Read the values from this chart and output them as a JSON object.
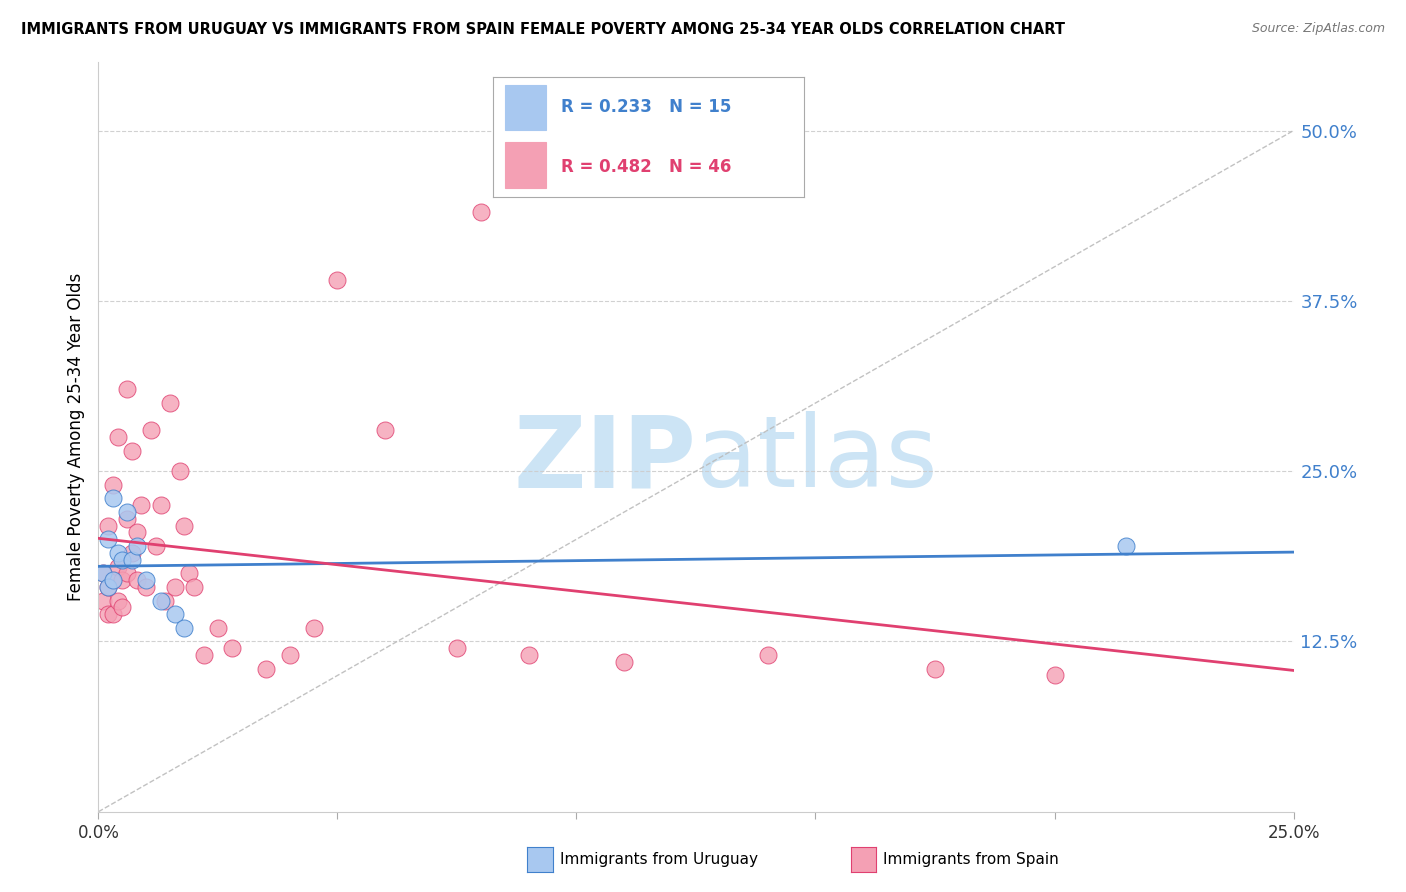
{
  "title": "IMMIGRANTS FROM URUGUAY VS IMMIGRANTS FROM SPAIN FEMALE POVERTY AMONG 25-34 YEAR OLDS CORRELATION CHART",
  "source": "Source: ZipAtlas.com",
  "ylabel": "Female Poverty Among 25-34 Year Olds",
  "xlim": [
    0.0,
    0.25
  ],
  "ylim": [
    0.0,
    0.55
  ],
  "yticks": [
    0.125,
    0.25,
    0.375,
    0.5
  ],
  "ytick_labels": [
    "12.5%",
    "25.0%",
    "37.5%",
    "50.0%"
  ],
  "xticks": [
    0.0,
    0.05,
    0.1,
    0.15,
    0.2,
    0.25
  ],
  "xtick_labels": [
    "0.0%",
    "",
    "",
    "",
    "",
    "25.0%"
  ],
  "color_uruguay": "#a8c8f0",
  "color_spain": "#f4a0b4",
  "color_trend_uruguay": "#4080cc",
  "color_trend_spain": "#e04070",
  "watermark_color": "#cce4f5",
  "uruguay_x": [
    0.001,
    0.002,
    0.002,
    0.003,
    0.003,
    0.004,
    0.005,
    0.006,
    0.007,
    0.008,
    0.01,
    0.013,
    0.016,
    0.018,
    0.215
  ],
  "uruguay_y": [
    0.175,
    0.165,
    0.2,
    0.17,
    0.23,
    0.19,
    0.185,
    0.22,
    0.185,
    0.195,
    0.17,
    0.155,
    0.145,
    0.135,
    0.195
  ],
  "spain_x": [
    0.001,
    0.001,
    0.002,
    0.002,
    0.002,
    0.003,
    0.003,
    0.003,
    0.004,
    0.004,
    0.004,
    0.005,
    0.005,
    0.006,
    0.006,
    0.006,
    0.007,
    0.007,
    0.008,
    0.008,
    0.009,
    0.01,
    0.011,
    0.012,
    0.013,
    0.014,
    0.015,
    0.016,
    0.017,
    0.018,
    0.019,
    0.02,
    0.022,
    0.025,
    0.028,
    0.035,
    0.04,
    0.045,
    0.05,
    0.06,
    0.075,
    0.09,
    0.11,
    0.14,
    0.175,
    0.2
  ],
  "spain_y": [
    0.155,
    0.175,
    0.145,
    0.165,
    0.21,
    0.145,
    0.17,
    0.24,
    0.155,
    0.18,
    0.275,
    0.15,
    0.17,
    0.175,
    0.215,
    0.31,
    0.19,
    0.265,
    0.205,
    0.17,
    0.225,
    0.165,
    0.28,
    0.195,
    0.225,
    0.155,
    0.3,
    0.165,
    0.25,
    0.21,
    0.175,
    0.165,
    0.115,
    0.135,
    0.12,
    0.105,
    0.115,
    0.135,
    0.39,
    0.28,
    0.12,
    0.115,
    0.11,
    0.115,
    0.105,
    0.1
  ],
  "spain_high_x": [
    0.08
  ],
  "spain_high_y": [
    0.44
  ]
}
